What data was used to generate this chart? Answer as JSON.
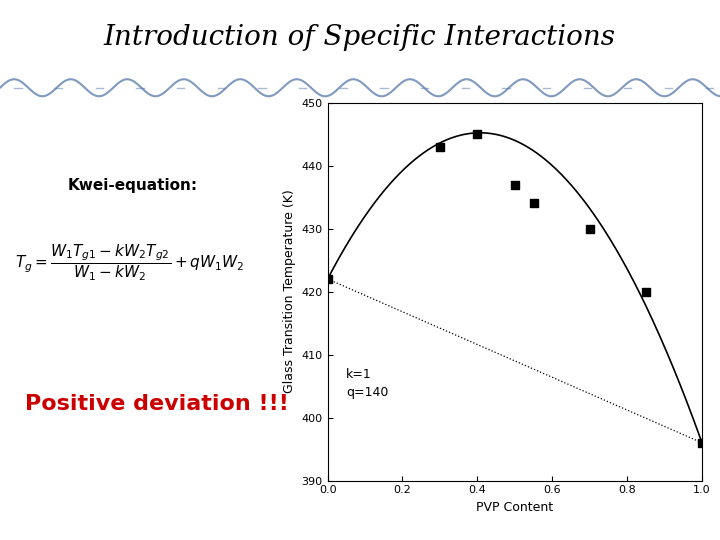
{
  "title": "Introduction of Specific Interactions",
  "kwei_label": "Kwei-equation:",
  "positive_deviation": "Positive deviation !!!",
  "xlabel": "PVP Content",
  "ylabel": "Glass Transition Temperature (K)",
  "xlim": [
    0.0,
    1.0
  ],
  "ylim": [
    390,
    450
  ],
  "yticks": [
    390,
    400,
    410,
    420,
    430,
    440,
    450
  ],
  "xticks": [
    0.0,
    0.2,
    0.4,
    0.6,
    0.8,
    1.0
  ],
  "Tg1": 422,
  "Tg2": 396,
  "k": 1,
  "q": 140,
  "scatter_x": [
    0.0,
    0.3,
    0.4,
    0.5,
    0.55,
    0.7,
    0.85,
    1.0
  ],
  "scatter_y": [
    422,
    443,
    445,
    437,
    434,
    430,
    420,
    396
  ],
  "annotation_text": "k=1\nq=140",
  "bg_color": "#ffffff",
  "curve_color": "#000000",
  "linear_color": "#000000",
  "scatter_color": "#000000",
  "title_color": "#000000",
  "positive_dev_color": "#cc0000"
}
